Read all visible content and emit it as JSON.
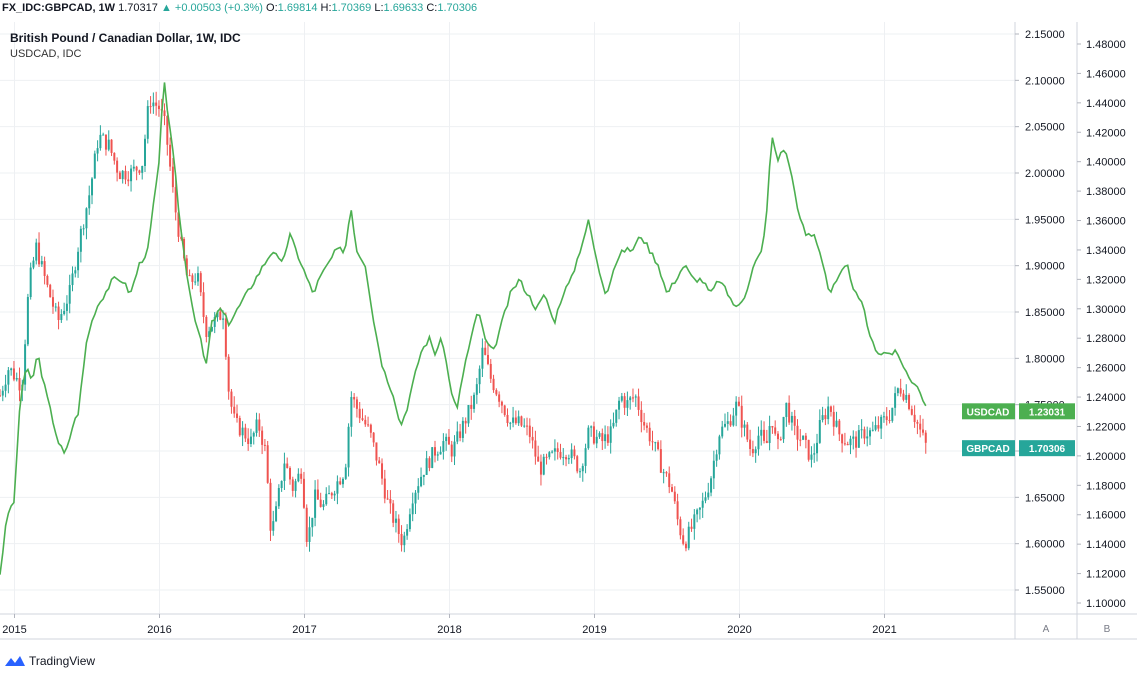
{
  "header": {
    "symbol": "FX_IDC:GBPCAD, 1W",
    "last": "1.70317",
    "change_arrow": "▲",
    "change": "+0.00503 (+0.3%)",
    "open_label": "O:",
    "open": "1.69814",
    "high_label": "H:",
    "high": "1.70369",
    "low_label": "L:",
    "low": "1.69633",
    "close_label": "C:",
    "close": "1.70306"
  },
  "legend": {
    "main": "British Pound / Canadian Dollar, 1W, IDC",
    "overlay": "USDCAD, IDC"
  },
  "footer": {
    "brand": "TradingView"
  },
  "colors": {
    "up": "#26a69a",
    "down": "#ef5350",
    "overlay": "#4caf50",
    "grid": "#eef0f3"
  },
  "chart_data": {
    "type": "candlestick",
    "title": "British Pound / Canadian Dollar, 1W, IDC",
    "left_axis_ylim": [
      1.53,
      2.16
    ],
    "right_axis_ylim": [
      1.09,
      1.49
    ],
    "left_axis_ticks": [
      "2.15000",
      "2.10000",
      "2.05000",
      "2.00000",
      "1.95000",
      "1.90000",
      "1.85000",
      "1.80000",
      "1.75000",
      "1.70000",
      "1.65000",
      "1.60000",
      "1.55000"
    ],
    "right_axis_ticks": [
      "1.48000",
      "1.46000",
      "1.44000",
      "1.42000",
      "1.40000",
      "1.38000",
      "1.36000",
      "1.34000",
      "1.32000",
      "1.30000",
      "1.28000",
      "1.26000",
      "1.24000",
      "1.22000",
      "1.20000",
      "1.18000",
      "1.16000",
      "1.14000",
      "1.12000",
      "1.10000"
    ],
    "x_labels": [
      {
        "label": "2015",
        "t": 2015.0
      },
      {
        "label": "2016",
        "t": 2016.0
      },
      {
        "label": "2017",
        "t": 2017.0
      },
      {
        "label": "2018",
        "t": 2018.0
      },
      {
        "label": "2019",
        "t": 2019.0
      },
      {
        "label": "2020",
        "t": 2020.0
      },
      {
        "label": "2021",
        "t": 2021.0
      }
    ],
    "x_range": [
      2014.9,
      2021.9
    ],
    "axis_buttons": [
      "A",
      "B"
    ],
    "series": [
      {
        "name": "GBPCAD",
        "axis": "left",
        "last_value": "1.70306",
        "keypoints": [
          [
            2014.9,
            1.76
          ],
          [
            2014.96,
            1.79
          ],
          [
            2015.05,
            1.77
          ],
          [
            2015.1,
            1.88
          ],
          [
            2015.15,
            1.92
          ],
          [
            2015.22,
            1.88
          ],
          [
            2015.3,
            1.84
          ],
          [
            2015.38,
            1.87
          ],
          [
            2015.45,
            1.93
          ],
          [
            2015.52,
            1.98
          ],
          [
            2015.58,
            2.04
          ],
          [
            2015.65,
            2.03
          ],
          [
            2015.72,
            2.0
          ],
          [
            2015.8,
            2.0
          ],
          [
            2015.88,
            2.01
          ],
          [
            2015.93,
            2.08
          ],
          [
            2016.0,
            2.07
          ],
          [
            2016.04,
            2.05
          ],
          [
            2016.1,
            1.97
          ],
          [
            2016.15,
            1.92
          ],
          [
            2016.2,
            1.88
          ],
          [
            2016.26,
            1.89
          ],
          [
            2016.32,
            1.83
          ],
          [
            2016.38,
            1.84
          ],
          [
            2016.44,
            1.85
          ],
          [
            2016.48,
            1.76
          ],
          [
            2016.52,
            1.73
          ],
          [
            2016.58,
            1.72
          ],
          [
            2016.63,
            1.71
          ],
          [
            2016.68,
            1.73
          ],
          [
            2016.73,
            1.7
          ],
          [
            2016.77,
            1.61
          ],
          [
            2016.8,
            1.63
          ],
          [
            2016.86,
            1.69
          ],
          [
            2016.92,
            1.66
          ],
          [
            2016.98,
            1.68
          ],
          [
            2017.02,
            1.6
          ],
          [
            2017.07,
            1.65
          ],
          [
            2017.13,
            1.64
          ],
          [
            2017.2,
            1.66
          ],
          [
            2017.28,
            1.68
          ],
          [
            2017.32,
            1.76
          ],
          [
            2017.38,
            1.74
          ],
          [
            2017.45,
            1.72
          ],
          [
            2017.52,
            1.68
          ],
          [
            2017.58,
            1.64
          ],
          [
            2017.63,
            1.62
          ],
          [
            2017.68,
            1.6
          ],
          [
            2017.74,
            1.65
          ],
          [
            2017.82,
            1.68
          ],
          [
            2017.9,
            1.7
          ],
          [
            2017.96,
            1.71
          ],
          [
            2018.02,
            1.7
          ],
          [
            2018.1,
            1.73
          ],
          [
            2018.18,
            1.76
          ],
          [
            2018.23,
            1.81
          ],
          [
            2018.28,
            1.78
          ],
          [
            2018.34,
            1.76
          ],
          [
            2018.42,
            1.73
          ],
          [
            2018.48,
            1.73
          ],
          [
            2018.55,
            1.72
          ],
          [
            2018.62,
            1.68
          ],
          [
            2018.68,
            1.69
          ],
          [
            2018.75,
            1.7
          ],
          [
            2018.82,
            1.7
          ],
          [
            2018.9,
            1.68
          ],
          [
            2018.96,
            1.72
          ],
          [
            2019.05,
            1.71
          ],
          [
            2019.12,
            1.72
          ],
          [
            2019.18,
            1.76
          ],
          [
            2019.22,
            1.75
          ],
          [
            2019.28,
            1.76
          ],
          [
            2019.34,
            1.73
          ],
          [
            2019.4,
            1.71
          ],
          [
            2019.47,
            1.68
          ],
          [
            2019.53,
            1.66
          ],
          [
            2019.58,
            1.62
          ],
          [
            2019.62,
            1.6
          ],
          [
            2019.68,
            1.62
          ],
          [
            2019.74,
            1.64
          ],
          [
            2019.8,
            1.67
          ],
          [
            2019.86,
            1.72
          ],
          [
            2019.92,
            1.73
          ],
          [
            2019.98,
            1.75
          ],
          [
            2020.02,
            1.73
          ],
          [
            2020.08,
            1.7
          ],
          [
            2020.14,
            1.72
          ],
          [
            2020.18,
            1.7
          ],
          [
            2020.22,
            1.74
          ],
          [
            2020.26,
            1.7
          ],
          [
            2020.32,
            1.75
          ],
          [
            2020.38,
            1.72
          ],
          [
            2020.44,
            1.71
          ],
          [
            2020.5,
            1.69
          ],
          [
            2020.56,
            1.73
          ],
          [
            2020.62,
            1.75
          ],
          [
            2020.68,
            1.72
          ],
          [
            2020.74,
            1.71
          ],
          [
            2020.8,
            1.71
          ],
          [
            2020.86,
            1.72
          ],
          [
            2020.92,
            1.72
          ],
          [
            2020.98,
            1.73
          ],
          [
            2021.04,
            1.74
          ],
          [
            2021.1,
            1.77
          ],
          [
            2021.15,
            1.76
          ],
          [
            2021.2,
            1.74
          ],
          [
            2021.25,
            1.72
          ],
          [
            2021.3,
            1.7
          ]
        ]
      },
      {
        "name": "USDCAD",
        "axis": "right",
        "last_value": "1.23031",
        "keypoints": [
          [
            2014.9,
            1.12
          ],
          [
            2014.95,
            1.16
          ],
          [
            2015.0,
            1.17
          ],
          [
            2015.04,
            1.24
          ],
          [
            2015.08,
            1.26
          ],
          [
            2015.12,
            1.25
          ],
          [
            2015.16,
            1.27
          ],
          [
            2015.2,
            1.25
          ],
          [
            2015.25,
            1.23
          ],
          [
            2015.3,
            1.21
          ],
          [
            2015.35,
            1.2
          ],
          [
            2015.4,
            1.22
          ],
          [
            2015.44,
            1.23
          ],
          [
            2015.5,
            1.28
          ],
          [
            2015.56,
            1.3
          ],
          [
            2015.62,
            1.31
          ],
          [
            2015.68,
            1.32
          ],
          [
            2015.74,
            1.32
          ],
          [
            2015.8,
            1.31
          ],
          [
            2015.86,
            1.33
          ],
          [
            2015.92,
            1.34
          ],
          [
            2015.97,
            1.38
          ],
          [
            2016.0,
            1.4
          ],
          [
            2016.03,
            1.46
          ],
          [
            2016.06,
            1.43
          ],
          [
            2016.1,
            1.4
          ],
          [
            2016.14,
            1.36
          ],
          [
            2016.18,
            1.33
          ],
          [
            2016.23,
            1.3
          ],
          [
            2016.28,
            1.28
          ],
          [
            2016.32,
            1.26
          ],
          [
            2016.36,
            1.29
          ],
          [
            2016.42,
            1.3
          ],
          [
            2016.48,
            1.29
          ],
          [
            2016.54,
            1.3
          ],
          [
            2016.6,
            1.31
          ],
          [
            2016.66,
            1.32
          ],
          [
            2016.72,
            1.33
          ],
          [
            2016.78,
            1.34
          ],
          [
            2016.84,
            1.33
          ],
          [
            2016.9,
            1.35
          ],
          [
            2016.94,
            1.34
          ],
          [
            2016.98,
            1.33
          ],
          [
            2017.02,
            1.32
          ],
          [
            2017.06,
            1.31
          ],
          [
            2017.1,
            1.32
          ],
          [
            2017.16,
            1.33
          ],
          [
            2017.22,
            1.34
          ],
          [
            2017.28,
            1.34
          ],
          [
            2017.32,
            1.37
          ],
          [
            2017.36,
            1.34
          ],
          [
            2017.42,
            1.33
          ],
          [
            2017.48,
            1.29
          ],
          [
            2017.54,
            1.26
          ],
          [
            2017.58,
            1.25
          ],
          [
            2017.62,
            1.24
          ],
          [
            2017.66,
            1.22
          ],
          [
            2017.7,
            1.23
          ],
          [
            2017.75,
            1.25
          ],
          [
            2017.8,
            1.27
          ],
          [
            2017.86,
            1.28
          ],
          [
            2017.9,
            1.27
          ],
          [
            2017.95,
            1.28
          ],
          [
            2018.0,
            1.25
          ],
          [
            2018.05,
            1.23
          ],
          [
            2018.1,
            1.26
          ],
          [
            2018.15,
            1.28
          ],
          [
            2018.2,
            1.3
          ],
          [
            2018.24,
            1.28
          ],
          [
            2018.3,
            1.27
          ],
          [
            2018.36,
            1.29
          ],
          [
            2018.42,
            1.31
          ],
          [
            2018.48,
            1.32
          ],
          [
            2018.54,
            1.31
          ],
          [
            2018.6,
            1.3
          ],
          [
            2018.66,
            1.31
          ],
          [
            2018.72,
            1.29
          ],
          [
            2018.78,
            1.31
          ],
          [
            2018.84,
            1.32
          ],
          [
            2018.9,
            1.34
          ],
          [
            2018.96,
            1.36
          ],
          [
            2019.02,
            1.33
          ],
          [
            2019.08,
            1.31
          ],
          [
            2019.14,
            1.33
          ],
          [
            2019.2,
            1.34
          ],
          [
            2019.26,
            1.34
          ],
          [
            2019.32,
            1.35
          ],
          [
            2019.38,
            1.34
          ],
          [
            2019.44,
            1.33
          ],
          [
            2019.5,
            1.31
          ],
          [
            2019.56,
            1.32
          ],
          [
            2019.62,
            1.33
          ],
          [
            2019.68,
            1.32
          ],
          [
            2019.74,
            1.32
          ],
          [
            2019.8,
            1.31
          ],
          [
            2019.86,
            1.32
          ],
          [
            2019.92,
            1.31
          ],
          [
            2019.98,
            1.3
          ],
          [
            2020.04,
            1.31
          ],
          [
            2020.1,
            1.33
          ],
          [
            2020.16,
            1.34
          ],
          [
            2020.2,
            1.38
          ],
          [
            2020.22,
            1.42
          ],
          [
            2020.26,
            1.4
          ],
          [
            2020.3,
            1.41
          ],
          [
            2020.34,
            1.4
          ],
          [
            2020.38,
            1.38
          ],
          [
            2020.42,
            1.36
          ],
          [
            2020.46,
            1.35
          ],
          [
            2020.52,
            1.35
          ],
          [
            2020.58,
            1.33
          ],
          [
            2020.62,
            1.31
          ],
          [
            2020.68,
            1.32
          ],
          [
            2020.74,
            1.33
          ],
          [
            2020.8,
            1.31
          ],
          [
            2020.86,
            1.3
          ],
          [
            2020.9,
            1.28
          ],
          [
            2020.96,
            1.27
          ],
          [
            2021.02,
            1.27
          ],
          [
            2021.08,
            1.27
          ],
          [
            2021.14,
            1.26
          ],
          [
            2021.18,
            1.25
          ],
          [
            2021.22,
            1.25
          ],
          [
            2021.26,
            1.24
          ],
          [
            2021.3,
            1.23
          ]
        ]
      }
    ]
  }
}
